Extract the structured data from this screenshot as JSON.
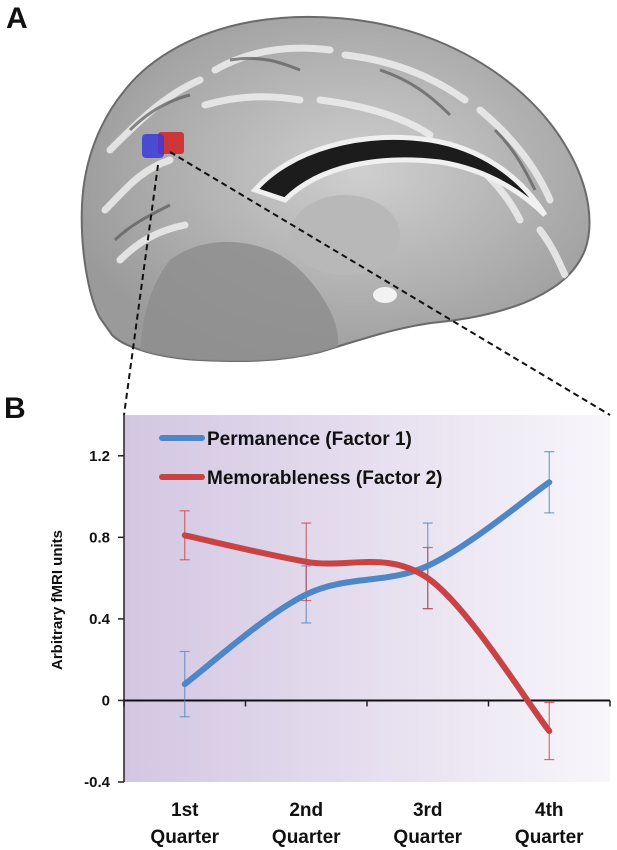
{
  "panels": {
    "a": "A",
    "b": "B"
  },
  "chart_data": {
    "type": "line",
    "categories": [
      "1st Quarter",
      "2nd Quarter",
      "3rd Quarter",
      "4th Quarter"
    ],
    "category_lines": [
      [
        "1st",
        "Quarter"
      ],
      [
        "2nd",
        "Quarter"
      ],
      [
        "3rd",
        "Quarter"
      ],
      [
        "4th",
        "Quarter"
      ]
    ],
    "ylabel": "Arbitrary fMRI units",
    "ylim": [
      -0.4,
      1.4
    ],
    "yticks": [
      -0.4,
      0,
      0.4,
      0.8,
      1.2
    ],
    "ytick_labels": [
      "-0.4",
      "0",
      "0.4",
      "0.8",
      "1.2"
    ],
    "legend_position": "top-left",
    "series": [
      {
        "name": "Permanence (Factor 1)",
        "color": "#4f86c6",
        "values": [
          0.08,
          0.52,
          0.66,
          1.07
        ],
        "err": [
          0.16,
          0.14,
          0.21,
          0.15
        ]
      },
      {
        "name": "Memorableness (Factor 2)",
        "color": "#c84444",
        "values": [
          0.81,
          0.68,
          0.6,
          -0.15
        ],
        "err": [
          0.12,
          0.19,
          0.15,
          0.14
        ]
      }
    ]
  }
}
